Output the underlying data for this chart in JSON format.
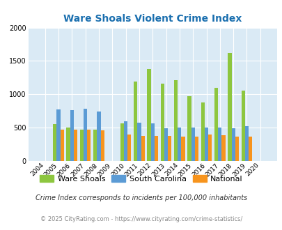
{
  "title": "Ware Shoals Violent Crime Index",
  "years": [
    2004,
    2005,
    2006,
    2007,
    2008,
    2009,
    2010,
    2011,
    2012,
    2013,
    2014,
    2015,
    2016,
    2017,
    2018,
    2019,
    2020
  ],
  "ware_shoals": [
    0,
    550,
    505,
    470,
    470,
    0,
    560,
    1190,
    1375,
    1155,
    1210,
    970,
    875,
    1100,
    1620,
    1060,
    0
  ],
  "south_carolina": [
    0,
    775,
    760,
    785,
    740,
    0,
    600,
    570,
    560,
    495,
    505,
    500,
    500,
    500,
    490,
    520,
    0
  ],
  "national": [
    0,
    470,
    470,
    470,
    460,
    0,
    395,
    375,
    380,
    375,
    365,
    370,
    395,
    390,
    370,
    365,
    0
  ],
  "ware_shoals_color": "#8dc63f",
  "south_carolina_color": "#5b9bd5",
  "national_color": "#f7941d",
  "bg_color": "#daeaf5",
  "fig_bg_color": "#ffffff",
  "ylim": [
    0,
    2000
  ],
  "yticks": [
    0,
    500,
    1000,
    1500,
    2000
  ],
  "title_color": "#1a6faf",
  "footnote1": "Crime Index corresponds to incidents per 100,000 inhabitants",
  "footnote2": "© 2025 CityRating.com - https://www.cityrating.com/crime-statistics/",
  "footnote1_color": "#333333",
  "footnote2_color": "#888888",
  "legend_labels": [
    "Ware Shoals",
    "South Carolina",
    "National"
  ]
}
